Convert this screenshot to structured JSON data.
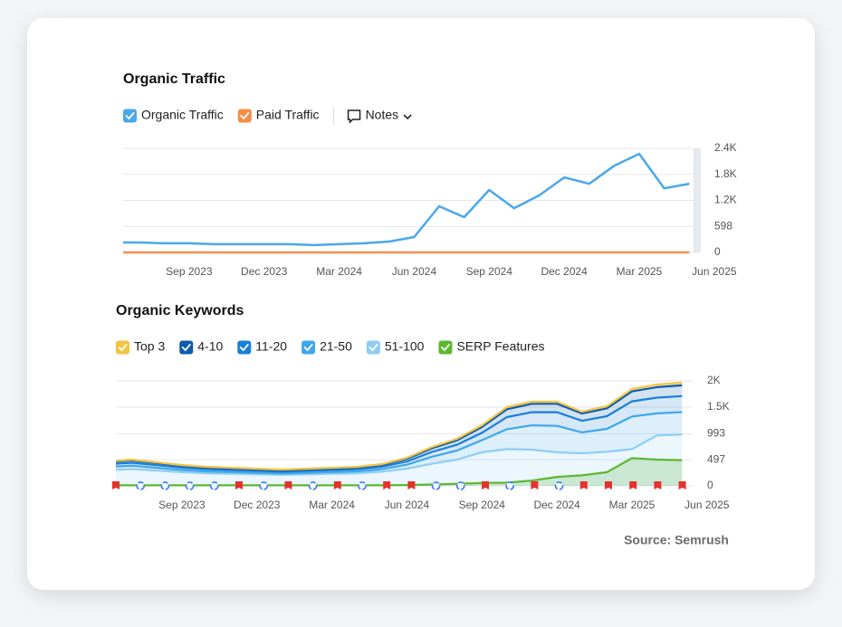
{
  "chart_data": [
    {
      "type": "line",
      "title": "Organic Traffic",
      "notes_button": "Notes",
      "x": [
        "2023-06",
        "2023-07",
        "2023-08",
        "2023-09",
        "2023-10",
        "2023-11",
        "2023-12",
        "2024-01",
        "2024-02",
        "2024-03",
        "2024-04",
        "2024-05",
        "2024-06",
        "2024-07",
        "2024-08",
        "2024-09",
        "2024-10",
        "2024-11",
        "2024-12",
        "2025-01",
        "2025-02",
        "2025-03",
        "2025-04",
        "2025-05"
      ],
      "series": [
        {
          "name": "Organic Traffic",
          "color": "#4aa8ec",
          "values": [
            230,
            230,
            210,
            210,
            190,
            190,
            190,
            190,
            170,
            190,
            210,
            250,
            355,
            1064,
            814,
            1440,
            1020,
            1315,
            1730,
            1585,
            2000,
            2275,
            1480,
            1585
          ]
        },
        {
          "name": "Paid Traffic",
          "color": "#f58d4a",
          "values": [
            0,
            0,
            0,
            0,
            0,
            0,
            0,
            0,
            0,
            0,
            0,
            0,
            0,
            0,
            0,
            0,
            0,
            0,
            0,
            0,
            0,
            0,
            0,
            0
          ]
        }
      ],
      "ylim": [
        0,
        2400
      ],
      "yticks": [
        0,
        598,
        {
          "value": 1200,
          "label": "1.2K"
        },
        {
          "value": 1800,
          "label": "1.8K"
        },
        {
          "value": 2400,
          "label": "2.4K"
        }
      ],
      "xticks": [
        {
          "value": "2023-09",
          "label": "Sep 2023"
        },
        {
          "value": "2023-12",
          "label": "Dec 2023"
        },
        {
          "value": "2024-03",
          "label": "Mar 2024"
        },
        {
          "value": "2024-06",
          "label": "Jun 2024"
        },
        {
          "value": "2024-09",
          "label": "Sep 2024"
        },
        {
          "value": "2024-12",
          "label": "Dec 2024"
        },
        {
          "value": "2025-03",
          "label": "Mar 2025"
        },
        {
          "value": "2025-06",
          "label": "Jun 2025"
        }
      ],
      "grid": true
    },
    {
      "type": "area",
      "title": "Organic Keywords",
      "stacked": true,
      "x": [
        "2023-06",
        "2023-07",
        "2023-08",
        "2023-09",
        "2023-10",
        "2023-11",
        "2023-12",
        "2024-01",
        "2024-02",
        "2024-03",
        "2024-04",
        "2024-05",
        "2024-06",
        "2024-07",
        "2024-08",
        "2024-09",
        "2024-10",
        "2024-11",
        "2024-12",
        "2025-01",
        "2025-02",
        "2025-03",
        "2025-04",
        "2025-05"
      ],
      "series": [
        {
          "name": "Top 3",
          "color": "#f5c342",
          "values": [
            15,
            15,
            15,
            15,
            15,
            15,
            15,
            15,
            15,
            15,
            15,
            15,
            20,
            25,
            30,
            35,
            40,
            40,
            40,
            35,
            40,
            45,
            50,
            50
          ]
        },
        {
          "name": "4-10",
          "color": "#0b5cad",
          "values": [
            40,
            45,
            40,
            35,
            32,
            30,
            28,
            27,
            28,
            30,
            32,
            36,
            50,
            70,
            85,
            110,
            150,
            160,
            160,
            140,
            150,
            190,
            200,
            205
          ]
        },
        {
          "name": "11-20",
          "color": "#1a7fd6",
          "values": [
            50,
            55,
            50,
            45,
            40,
            38,
            36,
            34,
            36,
            38,
            40,
            46,
            60,
            90,
            110,
            140,
            230,
            250,
            260,
            220,
            240,
            290,
            300,
            305
          ]
        },
        {
          "name": "21-50",
          "color": "#3ea8ea",
          "values": [
            61,
            65,
            53,
            42,
            35,
            32,
            29,
            24,
            29,
            32,
            35,
            47,
            74,
            136,
            172,
            230,
            380,
            463,
            503,
            399,
            437,
            620,
            421,
            426
          ]
        },
        {
          "name": "51-100",
          "color": "#8fcdf5",
          "values": [
            300,
            320,
            290,
            260,
            240,
            230,
            220,
            210,
            220,
            230,
            240,
            270,
            330,
            420,
            500,
            640,
            700,
            690,
            640,
            620,
            650,
            700,
            960,
            980
          ]
        },
        {
          "name": "SERP Features",
          "color": "#5cb82e",
          "stack": false,
          "values": [
            10,
            10,
            10,
            10,
            10,
            10,
            10,
            10,
            10,
            10,
            10,
            10,
            15,
            25,
            40,
            55,
            60,
            100,
            170,
            200,
            260,
            530,
            500,
            490
          ]
        }
      ],
      "ylim": [
        0,
        2000
      ],
      "yticks": [
        0,
        497,
        993,
        {
          "value": 1500,
          "label": "1.5K"
        },
        {
          "value": 2000,
          "label": "2K"
        }
      ],
      "xticks": [
        {
          "value": "2023-09",
          "label": "Sep 2023"
        },
        {
          "value": "2023-12",
          "label": "Dec 2023"
        },
        {
          "value": "2024-03",
          "label": "Mar 2024"
        },
        {
          "value": "2024-06",
          "label": "Jun 2024"
        },
        {
          "value": "2024-09",
          "label": "Sep 2024"
        },
        {
          "value": "2024-12",
          "label": "Dec 2024"
        },
        {
          "value": "2025-03",
          "label": "Mar 2025"
        },
        {
          "value": "2025-06",
          "label": "Jun 2025"
        }
      ],
      "grid": true
    }
  ],
  "source": "Source: Semrush"
}
